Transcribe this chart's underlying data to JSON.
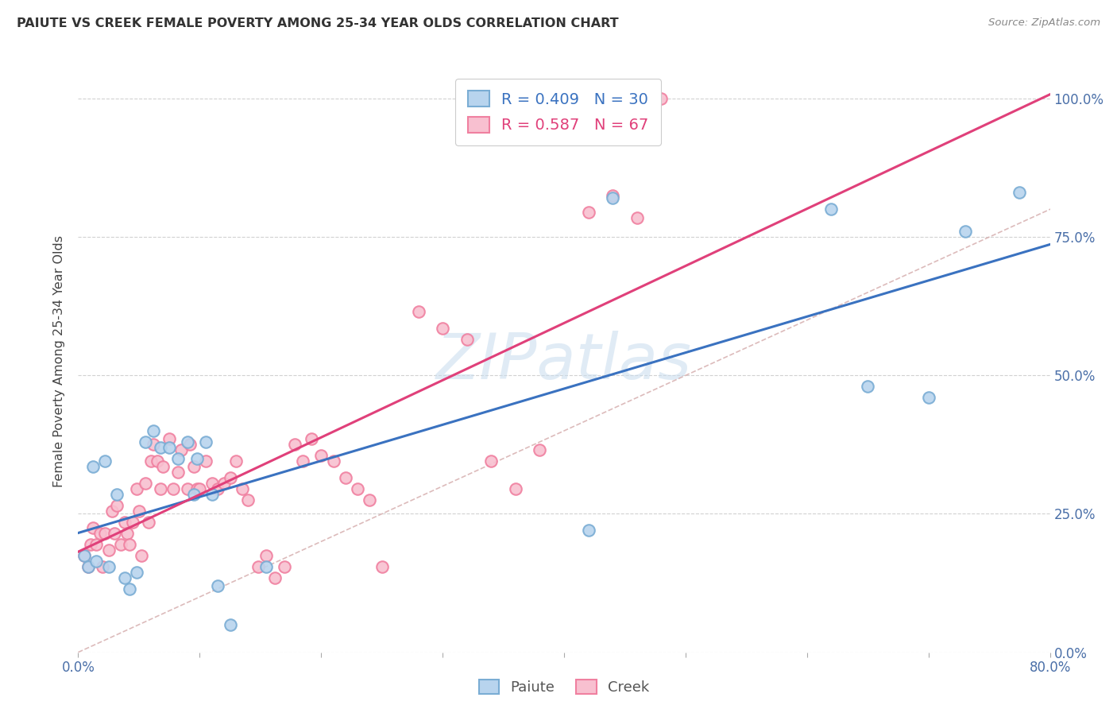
{
  "title": "PAIUTE VS CREEK FEMALE POVERTY AMONG 25-34 YEAR OLDS CORRELATION CHART",
  "source": "Source: ZipAtlas.com",
  "ylabel": "Female Poverty Among 25-34 Year Olds",
  "xlim": [
    0.0,
    0.8
  ],
  "ylim": [
    0.0,
    1.05
  ],
  "yticks": [
    0.0,
    0.25,
    0.5,
    0.75,
    1.0
  ],
  "xtick_positions": [
    0.0,
    0.1,
    0.2,
    0.3,
    0.4,
    0.5,
    0.6,
    0.7,
    0.8
  ],
  "xtick_labels": [
    "0.0%",
    "",
    "",
    "",
    "",
    "",
    "",
    "",
    "80.0%"
  ],
  "paiute_R": 0.409,
  "paiute_N": 30,
  "creek_R": 0.587,
  "creek_N": 67,
  "paiute_color": "#7AADD4",
  "creek_color": "#F080A0",
  "paiute_face_color": "#B8D4EE",
  "creek_face_color": "#F8C0D0",
  "paiute_line_color": "#3A72C0",
  "creek_line_color": "#E0407A",
  "diagonal_color": "#D4AAAA",
  "watermark": "ZIPatlas",
  "paiute_x": [
    0.012,
    0.022,
    0.005,
    0.008,
    0.015,
    0.025,
    0.032,
    0.038,
    0.042,
    0.048,
    0.055,
    0.062,
    0.068,
    0.075,
    0.082,
    0.09,
    0.098,
    0.105,
    0.115,
    0.125,
    0.095,
    0.11,
    0.155,
    0.42,
    0.44,
    0.62,
    0.65,
    0.7,
    0.73,
    0.775
  ],
  "paiute_y": [
    0.335,
    0.345,
    0.175,
    0.155,
    0.165,
    0.155,
    0.285,
    0.135,
    0.115,
    0.145,
    0.38,
    0.4,
    0.37,
    0.37,
    0.35,
    0.38,
    0.35,
    0.38,
    0.12,
    0.05,
    0.285,
    0.285,
    0.155,
    0.22,
    0.82,
    0.8,
    0.48,
    0.46,
    0.76,
    0.83
  ],
  "creek_x": [
    0.005,
    0.008,
    0.01,
    0.012,
    0.015,
    0.018,
    0.02,
    0.022,
    0.025,
    0.028,
    0.03,
    0.032,
    0.035,
    0.038,
    0.04,
    0.042,
    0.045,
    0.048,
    0.05,
    0.052,
    0.055,
    0.058,
    0.06,
    0.062,
    0.065,
    0.068,
    0.07,
    0.075,
    0.078,
    0.082,
    0.085,
    0.09,
    0.092,
    0.095,
    0.098,
    0.1,
    0.105,
    0.11,
    0.115,
    0.12,
    0.125,
    0.13,
    0.135,
    0.14,
    0.148,
    0.155,
    0.162,
    0.17,
    0.178,
    0.185,
    0.192,
    0.2,
    0.21,
    0.22,
    0.23,
    0.24,
    0.25,
    0.28,
    0.3,
    0.32,
    0.34,
    0.36,
    0.38,
    0.42,
    0.44,
    0.46,
    0.48
  ],
  "creek_y": [
    0.175,
    0.155,
    0.195,
    0.225,
    0.195,
    0.215,
    0.155,
    0.215,
    0.185,
    0.255,
    0.215,
    0.265,
    0.195,
    0.235,
    0.215,
    0.195,
    0.235,
    0.295,
    0.255,
    0.175,
    0.305,
    0.235,
    0.345,
    0.375,
    0.345,
    0.295,
    0.335,
    0.385,
    0.295,
    0.325,
    0.365,
    0.295,
    0.375,
    0.335,
    0.295,
    0.295,
    0.345,
    0.305,
    0.295,
    0.305,
    0.315,
    0.345,
    0.295,
    0.275,
    0.155,
    0.175,
    0.135,
    0.155,
    0.375,
    0.345,
    0.385,
    0.355,
    0.345,
    0.315,
    0.295,
    0.275,
    0.155,
    0.615,
    0.585,
    0.565,
    0.345,
    0.295,
    0.365,
    0.795,
    0.825,
    0.785,
    1.0
  ],
  "background_color": "#FFFFFF",
  "title_color": "#333333",
  "axis_label_color": "#444444",
  "tick_label_color": "#4A6FA8",
  "grid_color": "#CCCCCC",
  "legend_text_paiute": "R = 0.409   N = 30",
  "legend_text_creek": "R = 0.587   N = 67"
}
